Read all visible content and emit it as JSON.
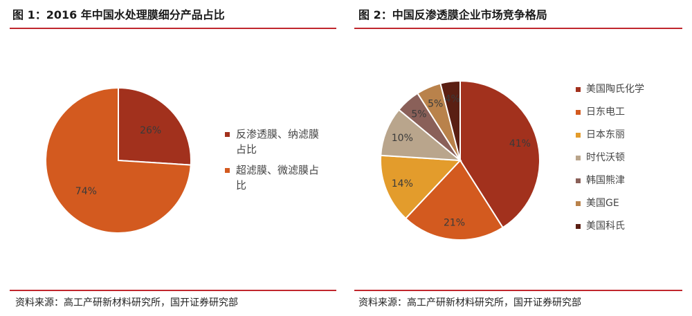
{
  "header": {
    "title1": "图 1：2016 年中国水处理膜细分产品占比",
    "title2": "图 2：中国反渗透膜企业市场竞争格局"
  },
  "footer": {
    "source1": "资料来源：高工产研新材料研究所，国开证券研究部",
    "source2": "资料来源：高工产研新材料研究所，国开证券研究部"
  },
  "chart_data": [
    {
      "type": "pie",
      "title": "图 1：2016 年中国水处理膜细分产品占比",
      "categories": [
        "反渗透膜、纳滤膜占比",
        "超滤膜、微滤膜占比"
      ],
      "values": [
        26,
        74
      ],
      "labels": [
        "26%",
        "74%"
      ],
      "colors": [
        "#a2311d",
        "#d35a1f"
      ],
      "legend": "right"
    },
    {
      "type": "pie",
      "title": "图 2：中国反渗透膜企业市场竞争格局",
      "categories": [
        "美国陶氏化学",
        "日东电工",
        "日本东丽",
        "时代沃顿",
        "韩国熊津",
        "美国GE",
        "美国科氏"
      ],
      "values": [
        41,
        21,
        14,
        10,
        5,
        5,
        4
      ],
      "labels": [
        "41%",
        "21%",
        "14%",
        "10%",
        "5%",
        "5%",
        "4%"
      ],
      "colors": [
        "#a2311d",
        "#d35a1f",
        "#e39c2c",
        "#b9a58c",
        "#8a6059",
        "#b9824b",
        "#5a1f13"
      ],
      "legend": "right"
    }
  ]
}
